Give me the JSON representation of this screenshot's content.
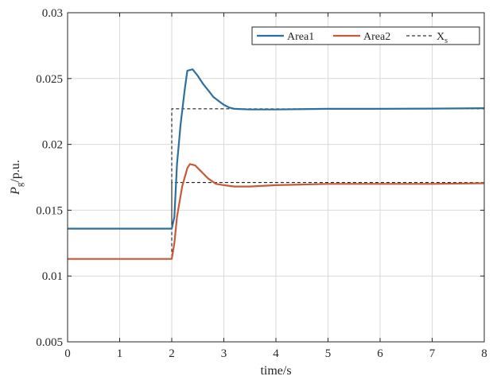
{
  "chart_data": {
    "type": "line",
    "xlabel": "time/s",
    "ylabel": {
      "main": "P",
      "sub": "g",
      "suffix": "/p.u."
    },
    "xlim": [
      0,
      8
    ],
    "ylim": [
      0.005,
      0.03
    ],
    "x_ticks": [
      0,
      1,
      2,
      3,
      4,
      5,
      6,
      7,
      8
    ],
    "y_ticks": [
      0.005,
      0.01,
      0.015,
      0.02,
      0.025,
      0.03
    ],
    "x_tick_labels": [
      "0",
      "1",
      "2",
      "3",
      "4",
      "5",
      "6",
      "7",
      "8"
    ],
    "y_tick_labels": [
      "0.005",
      "0.01",
      "0.015",
      "0.02",
      "0.025",
      "0.03"
    ],
    "grid": true,
    "legend_position": "top-right",
    "series": [
      {
        "name": "Area1",
        "color": "#2e6f9e",
        "style": "solid",
        "points": [
          [
            0,
            0.0136
          ],
          [
            2.0,
            0.0136
          ],
          [
            2.05,
            0.0145
          ],
          [
            2.1,
            0.0185
          ],
          [
            2.17,
            0.0215
          ],
          [
            2.25,
            0.0242
          ],
          [
            2.3,
            0.0256
          ],
          [
            2.4,
            0.0257
          ],
          [
            2.5,
            0.0252
          ],
          [
            2.6,
            0.0246
          ],
          [
            2.7,
            0.0241
          ],
          [
            2.8,
            0.0236
          ],
          [
            2.9,
            0.0233
          ],
          [
            3.0,
            0.023
          ],
          [
            3.1,
            0.0228
          ],
          [
            3.2,
            0.0227
          ],
          [
            3.5,
            0.02265
          ],
          [
            4.0,
            0.02265
          ],
          [
            5.0,
            0.0227
          ],
          [
            6.0,
            0.0227
          ],
          [
            7.0,
            0.02272
          ],
          [
            8.0,
            0.02275
          ]
        ]
      },
      {
        "name": "Area2",
        "color": "#c65a3a",
        "style": "solid",
        "points": [
          [
            0,
            0.0113
          ],
          [
            2.0,
            0.0113
          ],
          [
            2.05,
            0.0125
          ],
          [
            2.1,
            0.0145
          ],
          [
            2.2,
            0.0168
          ],
          [
            2.3,
            0.0182
          ],
          [
            2.35,
            0.0185
          ],
          [
            2.45,
            0.0184
          ],
          [
            2.55,
            0.018
          ],
          [
            2.7,
            0.0174
          ],
          [
            2.85,
            0.017
          ],
          [
            3.0,
            0.0169
          ],
          [
            3.2,
            0.0168
          ],
          [
            3.5,
            0.0168
          ],
          [
            4.0,
            0.0169
          ],
          [
            4.5,
            0.01695
          ],
          [
            5.0,
            0.017
          ],
          [
            6.0,
            0.017
          ],
          [
            7.0,
            0.017
          ],
          [
            8.0,
            0.01705
          ]
        ]
      },
      {
        "name": "X",
        "name_sub": "s",
        "color": "#000000",
        "style": "dashed",
        "points": [
          [
            0,
            0.0136
          ],
          [
            2.0,
            0.0136
          ],
          [
            2.0,
            0.0227
          ],
          [
            8.0,
            0.0227
          ]
        ],
        "points2": [
          [
            0,
            0.0113
          ],
          [
            2.0,
            0.0113
          ],
          [
            2.0,
            0.0171
          ],
          [
            8.0,
            0.0171
          ]
        ]
      }
    ]
  }
}
